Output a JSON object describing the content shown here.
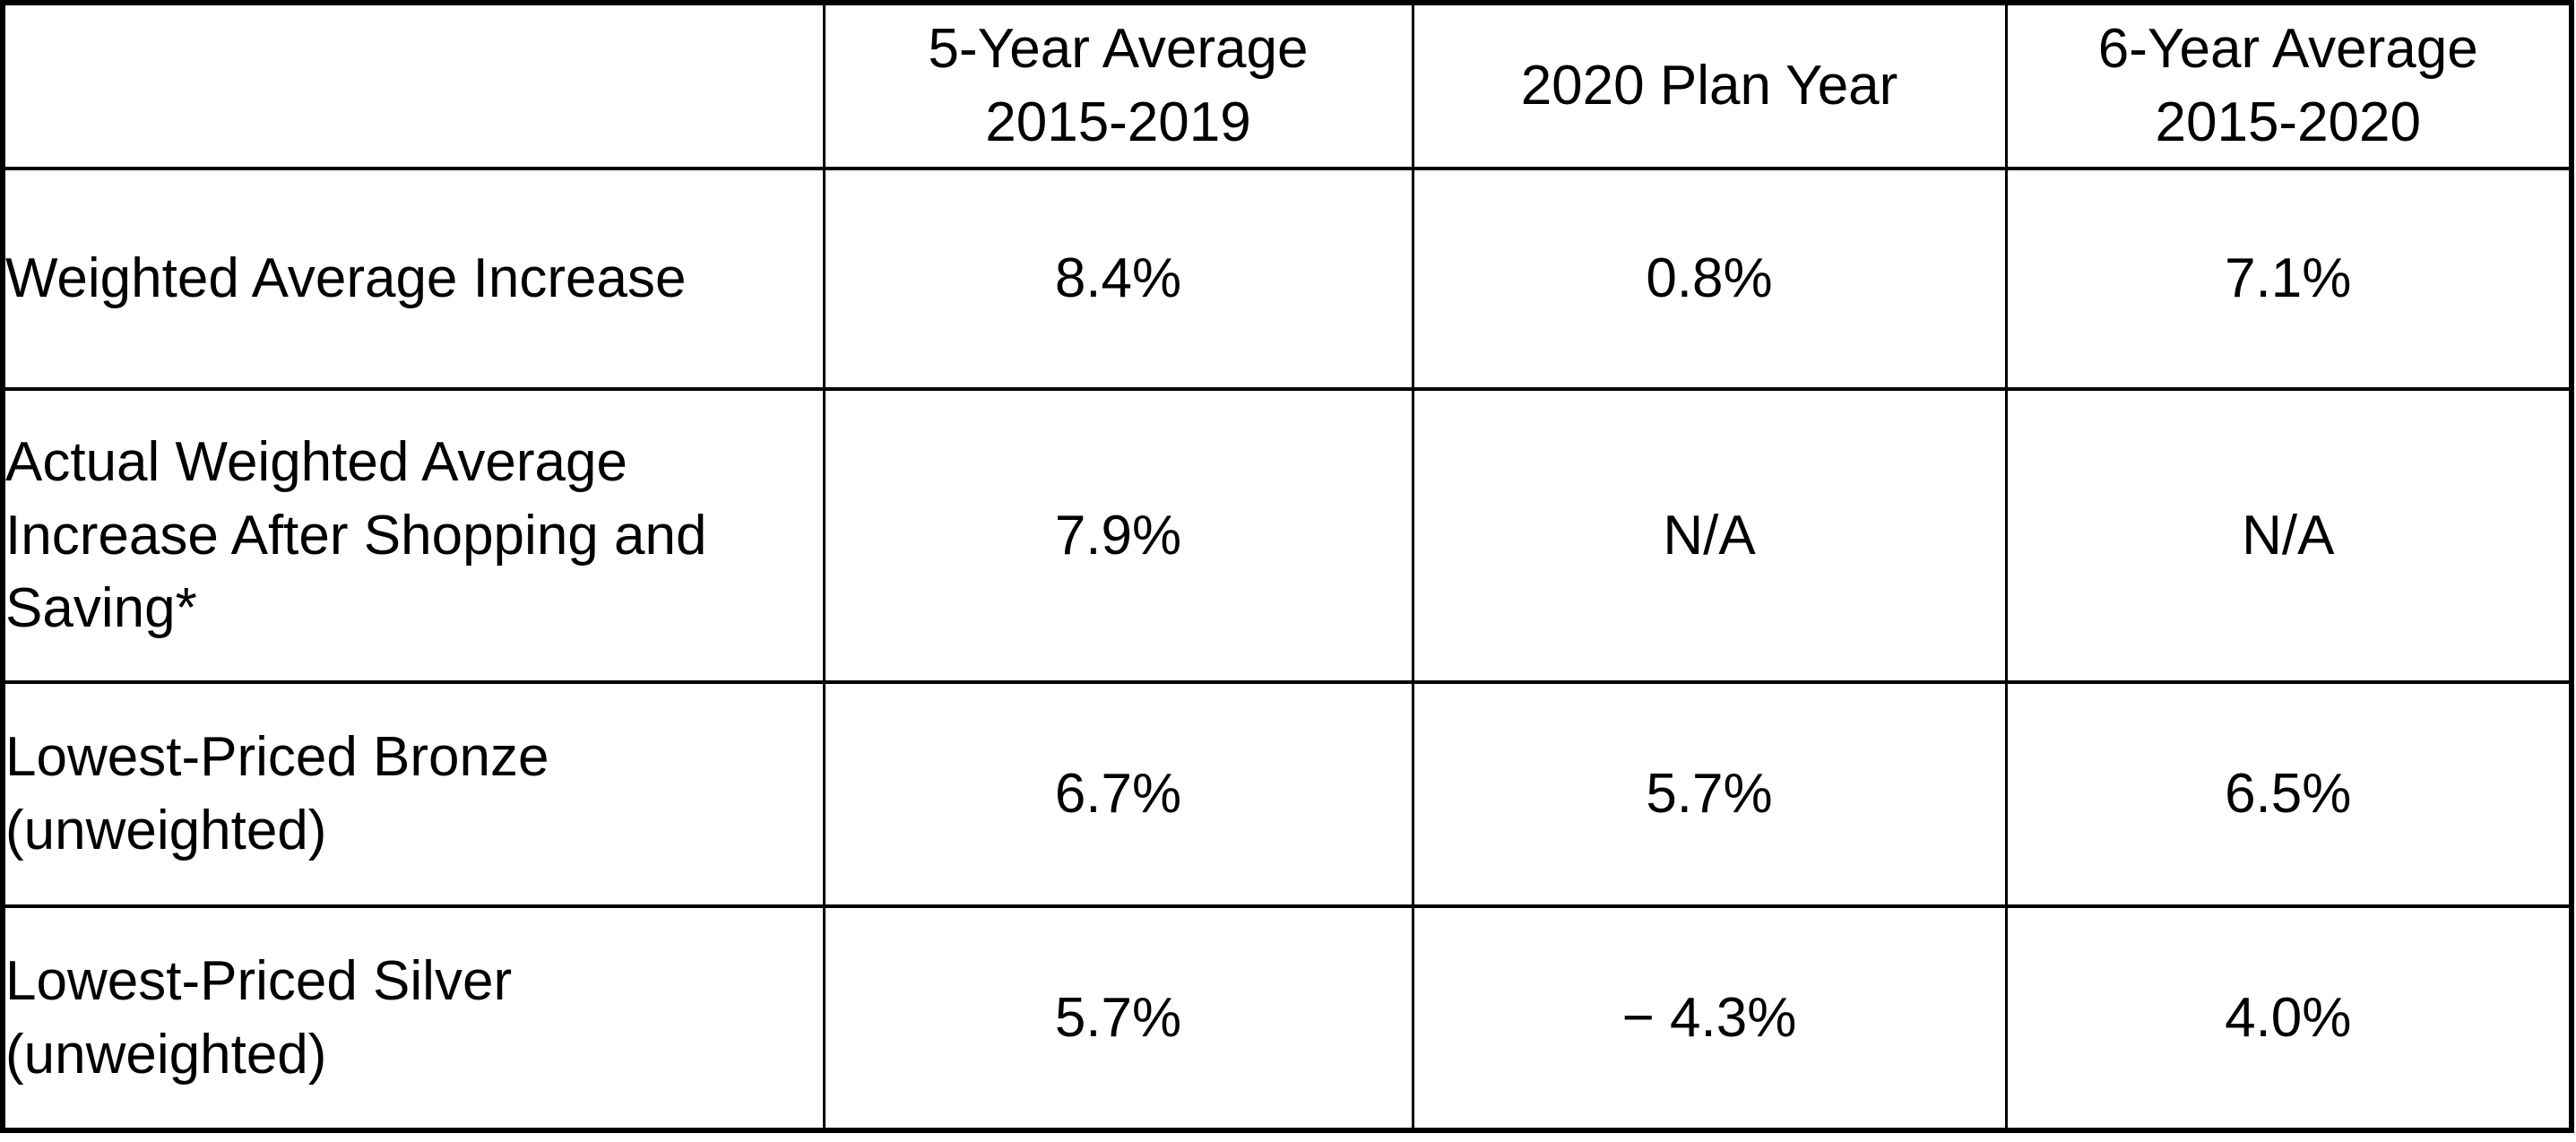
{
  "colors": {
    "background": "#ffffff",
    "border": "#000000",
    "text": "#000000"
  },
  "table": {
    "columns": [
      "",
      "5-Year Average\n2015-2019",
      "2020 Plan Year",
      "6-Year Average\n2015-2020"
    ],
    "rows": [
      {
        "label": "Weighted Average Increase",
        "values": [
          "8.4%",
          "0.8%",
          "7.1%"
        ]
      },
      {
        "label": "Actual Weighted Average Increase After Shopping and Saving*",
        "values": [
          "7.9%",
          "N/A",
          "N/A"
        ]
      },
      {
        "label": "Lowest-Priced Bronze (unweighted)",
        "values": [
          "6.7%",
          "5.7%",
          "6.5%"
        ]
      },
      {
        "label": "Lowest-Priced Silver (unweighted)",
        "values": [
          "5.7%",
          "− 4.3%",
          "4.0%"
        ]
      }
    ]
  },
  "chart_data": {
    "type": "table",
    "columns": [
      "",
      "5-Year Average 2015-2019",
      "2020 Plan Year",
      "6-Year Average 2015-2020"
    ],
    "rows": [
      [
        "Weighted Average Increase",
        "8.4%",
        "0.8%",
        "7.1%"
      ],
      [
        "Actual Weighted Average Increase After Shopping and Saving*",
        "7.9%",
        "N/A",
        "N/A"
      ],
      [
        "Lowest-Priced Bronze (unweighted)",
        "6.7%",
        "5.7%",
        "6.5%"
      ],
      [
        "Lowest-Priced Silver (unweighted)",
        "5.7%",
        "− 4.3%",
        "4.0%"
      ]
    ],
    "numeric_values_percent": {
      "series": [
        {
          "name": "Weighted Average Increase",
          "values": [
            8.4,
            0.8,
            7.1
          ]
        },
        {
          "name": "Actual Weighted Average Increase After Shopping and Saving*",
          "values": [
            7.9,
            null,
            null
          ]
        },
        {
          "name": "Lowest-Priced Bronze (unweighted)",
          "values": [
            6.7,
            5.7,
            6.5
          ]
        },
        {
          "name": "Lowest-Priced Silver (unweighted)",
          "values": [
            5.7,
            -4.3,
            4.0
          ]
        }
      ],
      "categories": [
        "5-Year Average 2015-2019",
        "2020 Plan Year",
        "6-Year Average 2015-2020"
      ]
    }
  }
}
